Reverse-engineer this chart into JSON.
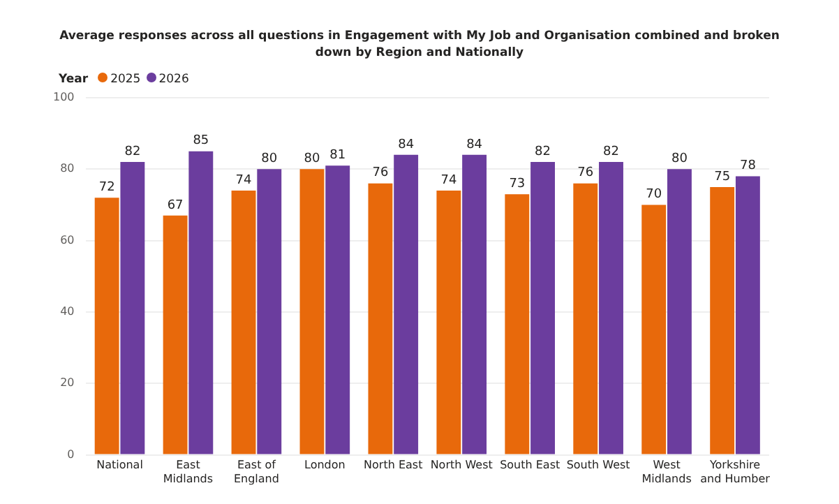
{
  "chart_data": {
    "type": "bar",
    "title": "Average responses across all questions in Engagement with My Job and Organisation combined and broken down by Region and Nationally",
    "legend_title": "Year",
    "legend": "top left",
    "categories": [
      "National",
      "East Midlands",
      "East of England",
      "London",
      "North East",
      "North West",
      "South East",
      "South West",
      "West Midlands",
      "Yorkshire and Humber"
    ],
    "series": [
      {
        "name": "2025",
        "color": "#e8690b",
        "values": [
          72,
          67,
          74,
          80,
          76,
          74,
          73,
          76,
          70,
          75
        ]
      },
      {
        "name": "2026",
        "color": "#6b3d9e",
        "values": [
          82,
          85,
          80,
          81,
          84,
          84,
          82,
          82,
          80,
          78
        ]
      }
    ],
    "ylim": [
      0,
      100
    ],
    "yticks": [
      0,
      20,
      40,
      60,
      80,
      100
    ],
    "grid": "y",
    "data_labels": true
  }
}
